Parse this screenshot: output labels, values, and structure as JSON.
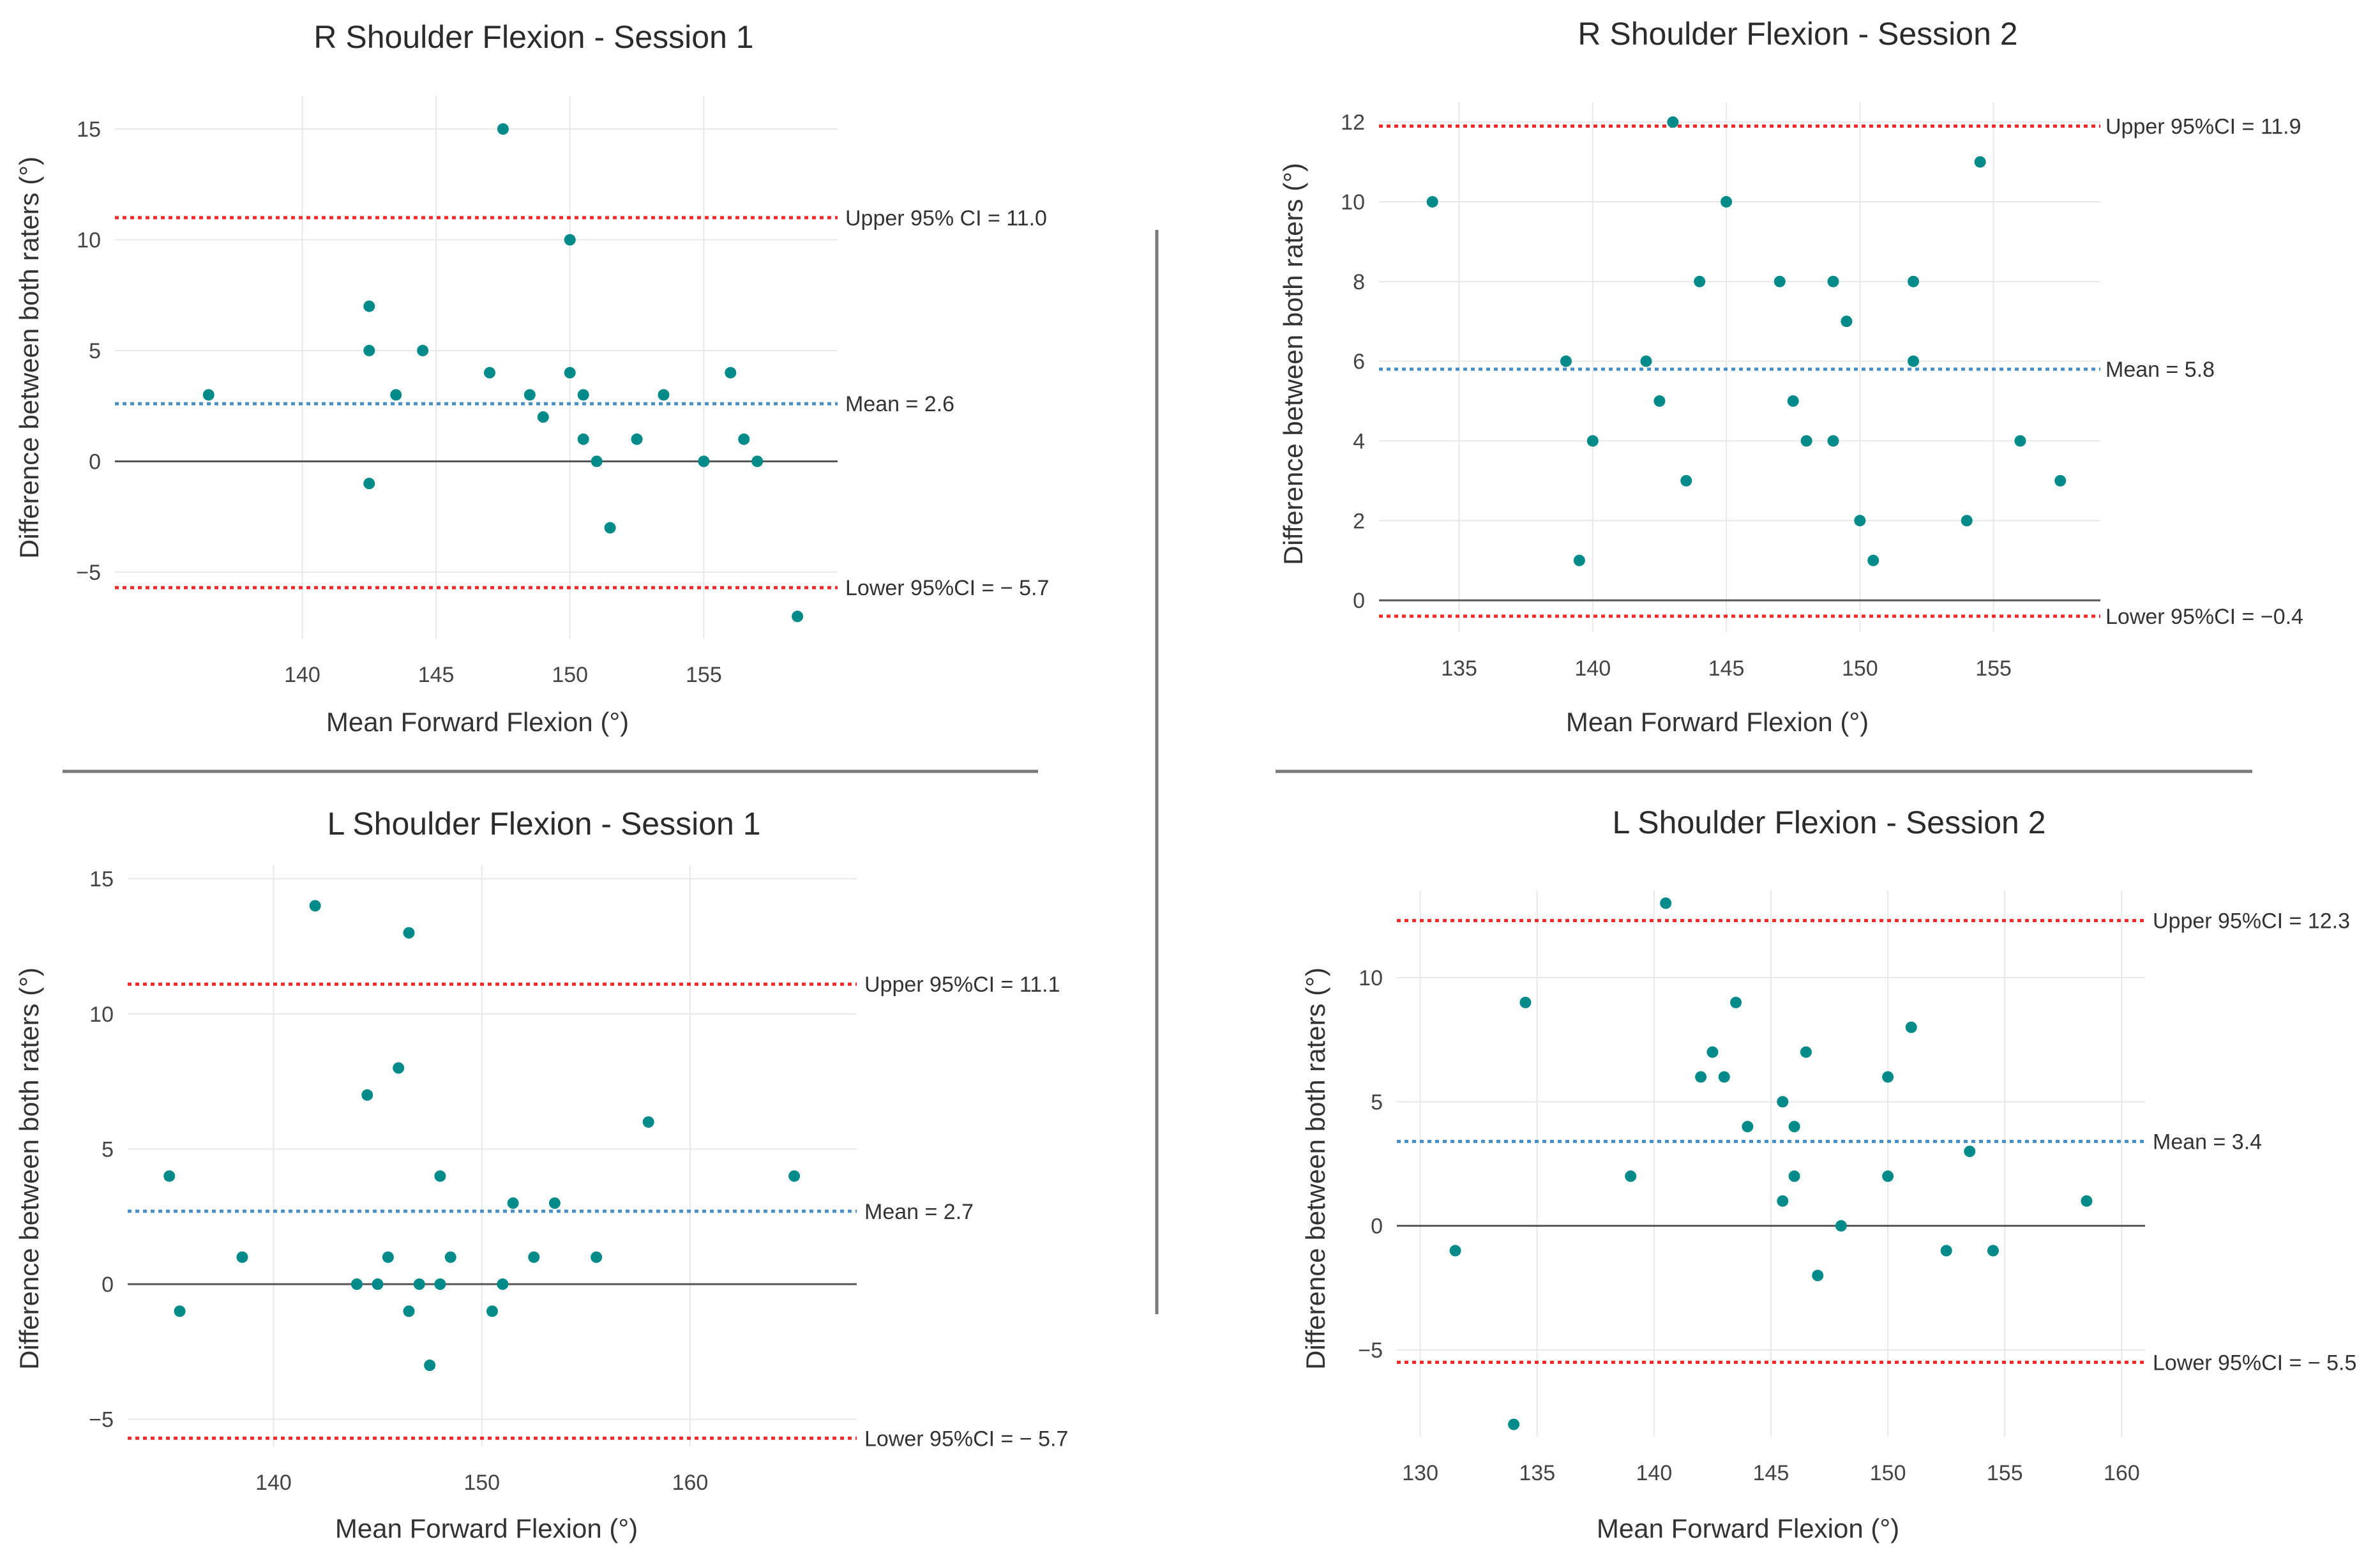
{
  "colors": {
    "point": "#008b8b",
    "mean_line": "#4a90c8",
    "ci_line": "#ee2b2b",
    "zero_line": "#555555"
  },
  "chart_data": [
    {
      "type": "scatter",
      "title": "R Shoulder Flexion - Session 1",
      "xlabel": "Mean Forward Flexion (°)",
      "ylabel": "Difference between both raters (°)",
      "xlim": [
        133,
        160
      ],
      "ylim": [
        -8,
        16.5
      ],
      "xticks": [
        "140",
        "145",
        "150",
        "155"
      ],
      "yticks": [
        "−5",
        "0",
        "5",
        "10",
        "15"
      ],
      "grid": true,
      "points": [
        [
          136.5,
          3
        ],
        [
          142.5,
          7
        ],
        [
          142.5,
          5
        ],
        [
          142.5,
          -1
        ],
        [
          143.5,
          3
        ],
        [
          144.5,
          5
        ],
        [
          147,
          4
        ],
        [
          147.5,
          15
        ],
        [
          148.5,
          3
        ],
        [
          149,
          2
        ],
        [
          150,
          10
        ],
        [
          150,
          4
        ],
        [
          150.5,
          3
        ],
        [
          150.5,
          1
        ],
        [
          151,
          0
        ],
        [
          151.5,
          -3
        ],
        [
          152.5,
          1
        ],
        [
          153.5,
          3
        ],
        [
          155,
          0
        ],
        [
          156,
          4
        ],
        [
          156.5,
          1
        ],
        [
          157,
          0
        ],
        [
          158.5,
          -7
        ]
      ],
      "lines": {
        "upper": {
          "value": 11.0,
          "label": "Upper 95% CI = 11.0"
        },
        "mean": {
          "value": 2.6,
          "label": "Mean = 2.6"
        },
        "lower": {
          "value": -5.7,
          "label": "Lower 95%CI = − 5.7"
        }
      }
    },
    {
      "type": "scatter",
      "title": "R Shoulder Flexion - Session 2",
      "xlabel": "Mean Forward Flexion (°)",
      "ylabel": "Difference between both raters (°)",
      "xlim": [
        132,
        159
      ],
      "ylim": [
        -0.8,
        12.5
      ],
      "xticks": [
        "135",
        "140",
        "145",
        "150",
        "155"
      ],
      "yticks": [
        "0",
        "2",
        "4",
        "6",
        "8",
        "10",
        "12"
      ],
      "grid": true,
      "points": [
        [
          134,
          10
        ],
        [
          139,
          6
        ],
        [
          139.5,
          1
        ],
        [
          140,
          4
        ],
        [
          142,
          6
        ],
        [
          142.5,
          5
        ],
        [
          143,
          12
        ],
        [
          143.5,
          3
        ],
        [
          144,
          8
        ],
        [
          145,
          10
        ],
        [
          147,
          8
        ],
        [
          147.5,
          5
        ],
        [
          148,
          4
        ],
        [
          149,
          8
        ],
        [
          149,
          4
        ],
        [
          149.5,
          7
        ],
        [
          150,
          2
        ],
        [
          150.5,
          1
        ],
        [
          152,
          8
        ],
        [
          152,
          6
        ],
        [
          154,
          2
        ],
        [
          154.5,
          11
        ],
        [
          156,
          4
        ],
        [
          157.5,
          3
        ]
      ],
      "lines": {
        "upper": {
          "value": 11.9,
          "label": "Upper 95%CI = 11.9"
        },
        "mean": {
          "value": 5.8,
          "label": "Mean = 5.8"
        },
        "lower": {
          "value": -0.4,
          "label": "Lower 95%CI = −0.4"
        }
      }
    },
    {
      "type": "scatter",
      "title": "L Shoulder Flexion - Session 1",
      "xlabel": "Mean Forward Flexion (°)",
      "ylabel": "Difference between both raters (°)",
      "xlim": [
        133,
        168
      ],
      "ylim": [
        -6,
        15.5
      ],
      "xticks": [
        "140",
        "150",
        "160"
      ],
      "yticks": [
        "−5",
        "0",
        "5",
        "10",
        "15"
      ],
      "grid": true,
      "points": [
        [
          135,
          4
        ],
        [
          135.5,
          -1
        ],
        [
          138.5,
          1
        ],
        [
          142,
          14
        ],
        [
          144,
          0
        ],
        [
          144.5,
          7
        ],
        [
          145,
          0
        ],
        [
          145.5,
          1
        ],
        [
          146,
          8
        ],
        [
          146.5,
          13
        ],
        [
          146.5,
          -1
        ],
        [
          147,
          0
        ],
        [
          147.5,
          -3
        ],
        [
          148,
          4
        ],
        [
          148,
          0
        ],
        [
          148.5,
          1
        ],
        [
          150.5,
          -1
        ],
        [
          151,
          0
        ],
        [
          151.5,
          3
        ],
        [
          152.5,
          1
        ],
        [
          153.5,
          3
        ],
        [
          155.5,
          1
        ],
        [
          158,
          6
        ],
        [
          165,
          4
        ]
      ],
      "lines": {
        "upper": {
          "value": 11.1,
          "label": "Upper 95%CI = 11.1"
        },
        "mean": {
          "value": 2.7,
          "label": "Mean = 2.7"
        },
        "lower": {
          "value": -5.7,
          "label": "Lower 95%CI = − 5.7"
        }
      }
    },
    {
      "type": "scatter",
      "title": "L Shoulder Flexion - Session 2",
      "xlabel": "Mean Forward Flexion (°)",
      "ylabel": "Difference between both raters (°)",
      "xlim": [
        129,
        161
      ],
      "ylim": [
        -8.5,
        13.5
      ],
      "xticks": [
        "130",
        "135",
        "140",
        "145",
        "150",
        "155",
        "160"
      ],
      "yticks": [
        "−5",
        "0",
        "5",
        "10"
      ],
      "grid": true,
      "points": [
        [
          131.5,
          -1
        ],
        [
          134,
          -8
        ],
        [
          134.5,
          9
        ],
        [
          139,
          2
        ],
        [
          140.5,
          13
        ],
        [
          142,
          6
        ],
        [
          142.5,
          7
        ],
        [
          143,
          6
        ],
        [
          143.5,
          9
        ],
        [
          144,
          4
        ],
        [
          145.5,
          5
        ],
        [
          145.5,
          1
        ],
        [
          146,
          4
        ],
        [
          146,
          2
        ],
        [
          146.5,
          7
        ],
        [
          147,
          -2
        ],
        [
          148,
          0
        ],
        [
          150,
          6
        ],
        [
          150,
          2
        ],
        [
          151,
          8
        ],
        [
          152.5,
          -1
        ],
        [
          153.5,
          3
        ],
        [
          154.5,
          -1
        ],
        [
          158.5,
          1
        ]
      ],
      "lines": {
        "upper": {
          "value": 12.3,
          "label": "Upper 95%CI = 12.3"
        },
        "mean": {
          "value": 3.4,
          "label": "Mean = 3.4"
        },
        "lower": {
          "value": -5.5,
          "label": "Lower 95%CI = − 5.5"
        }
      }
    }
  ]
}
